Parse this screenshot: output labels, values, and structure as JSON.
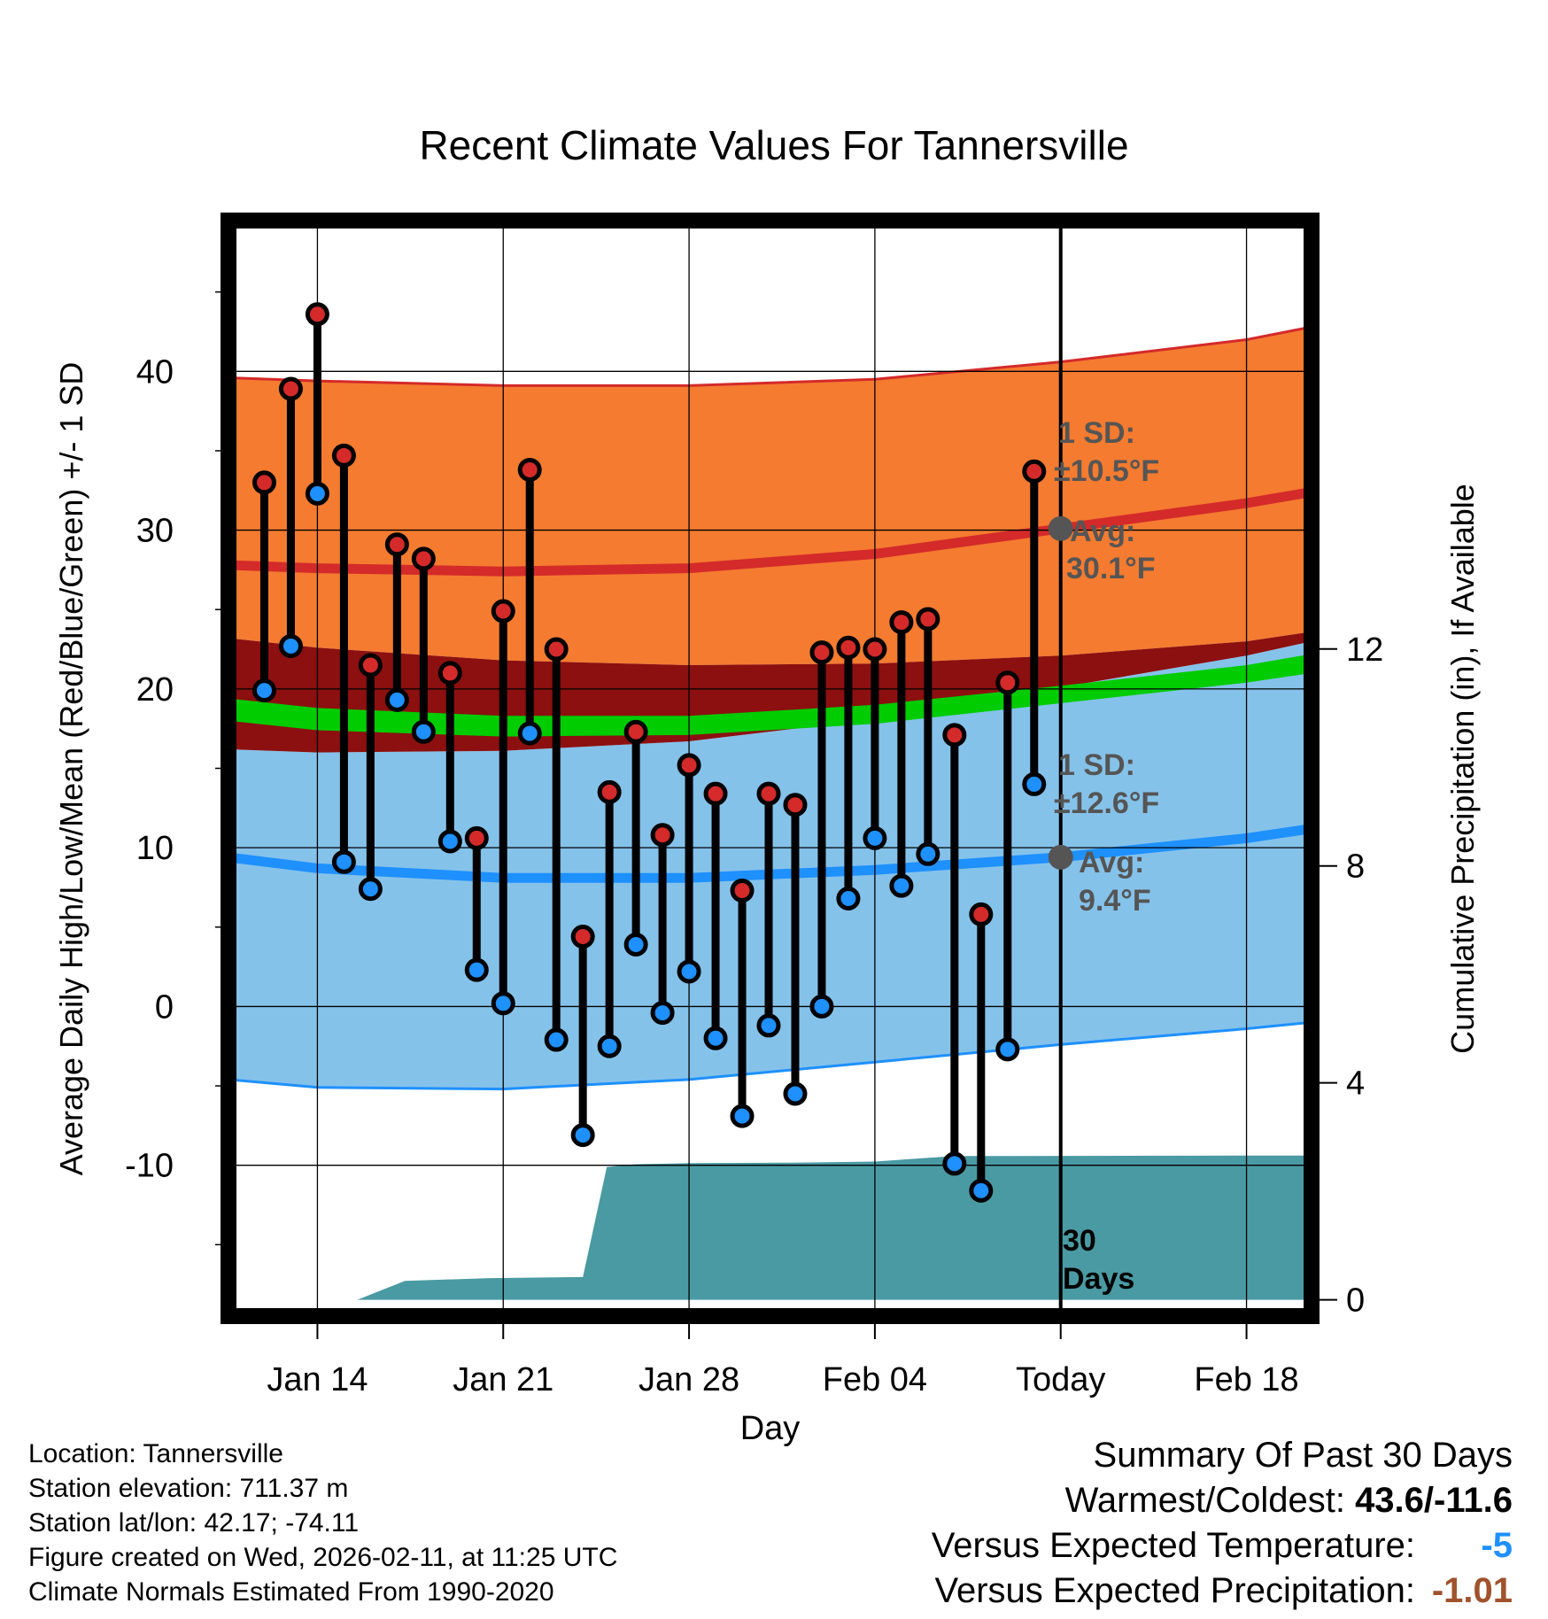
{
  "chart_data": {
    "type": "line",
    "title": "Recent Climate Values For Tannersville",
    "xlabel": "Day",
    "ylabel": "Average Daily High/Low/Mean (Red/Blue/Green) +/- 1 SD",
    "y2label": "Cumulative Precipitation (in), If Available",
    "ylim": [
      -19.5,
      49.5
    ],
    "y_ticks": [
      -10,
      0,
      10,
      20,
      30,
      40
    ],
    "y_tick_labels": [
      "-10",
      "0",
      "10",
      "20",
      "30",
      "40"
    ],
    "y2lim": [
      -0.3,
      19.9
    ],
    "y2_ticks": [
      0,
      4,
      8,
      12
    ],
    "y2_tick_labels": [
      "0",
      "4",
      "8",
      "12"
    ],
    "xlim": [
      -3.35,
      37.45
    ],
    "x_ticks": [
      0,
      7,
      14,
      21,
      28,
      35
    ],
    "x_tick_labels": [
      "Jan 14",
      "Jan 21",
      "Jan 28",
      "Feb 04",
      "Today",
      "Feb 18"
    ],
    "x_unit_note": "x values are days offset from Jan 14",
    "today_x": 28,
    "today_label_line1": "30",
    "today_label_line2": "Days",
    "normal_x": [
      -3.35,
      0,
      7,
      14,
      21,
      28,
      35,
      37.45
    ],
    "normal_high_upper": [
      39.6,
      39.4,
      39.1,
      39.1,
      39.5,
      40.6,
      42.0,
      42.8
    ],
    "normal_high_mean": [
      27.8,
      27.6,
      27.4,
      27.6,
      28.5,
      30.1,
      31.7,
      32.4
    ],
    "normal_high_lower": [
      23.2,
      22.6,
      21.8,
      21.5,
      21.6,
      22.1,
      23.0,
      23.6
    ],
    "normal_mean_upper": [
      19.4,
      18.8,
      18.3,
      18.3,
      19.0,
      20.2,
      21.5,
      22.2
    ],
    "normal_mean_lower": [
      18.0,
      17.4,
      17.0,
      17.1,
      17.8,
      19.1,
      20.4,
      21.0
    ],
    "normal_low_upper": [
      16.2,
      16.0,
      16.1,
      16.7,
      18.1,
      20.1,
      22.1,
      23.0
    ],
    "normal_low_mean": [
      9.4,
      8.7,
      8.1,
      8.1,
      8.6,
      9.4,
      10.6,
      11.2
    ],
    "normal_low_lower": [
      -4.6,
      -5.1,
      -5.2,
      -4.6,
      -3.5,
      -2.4,
      -1.4,
      -1.0
    ],
    "precip_x": [
      -3.35,
      1.5,
      3.3,
      6.5,
      10.0,
      10.9,
      12.0,
      14.0,
      18.0,
      21.0,
      24.0,
      36.0,
      37.45
    ],
    "precip_values": [
      0.0,
      0.0,
      0.35,
      0.4,
      0.42,
      2.45,
      2.5,
      2.52,
      2.53,
      2.55,
      2.65,
      2.66,
      2.66
    ],
    "series": [
      {
        "name": "Daily High",
        "x": [
          -2,
          -1,
          0,
          1,
          2,
          3,
          4,
          5,
          6,
          7,
          8,
          9,
          10,
          11,
          12,
          13,
          14,
          15,
          16,
          17,
          18,
          19,
          20,
          21,
          22,
          23,
          24,
          25,
          26,
          27
        ],
        "values": [
          33.0,
          38.9,
          43.6,
          34.7,
          21.5,
          29.1,
          28.2,
          21.0,
          10.6,
          24.9,
          33.8,
          22.5,
          4.4,
          13.5,
          17.3,
          10.8,
          15.2,
          13.4,
          7.3,
          13.4,
          12.7,
          22.3,
          22.6,
          22.5,
          24.2,
          24.4,
          17.1,
          5.8,
          20.4,
          33.7
        ]
      },
      {
        "name": "Daily Low",
        "x": [
          -2,
          -1,
          0,
          1,
          2,
          3,
          4,
          5,
          6,
          7,
          8,
          9,
          10,
          11,
          12,
          13,
          14,
          15,
          16,
          17,
          18,
          19,
          20,
          21,
          22,
          23,
          24,
          25,
          26,
          27
        ],
        "values": [
          19.9,
          22.7,
          32.3,
          9.1,
          7.4,
          19.3,
          17.3,
          10.4,
          2.3,
          0.2,
          17.2,
          -2.1,
          -8.1,
          -2.5,
          3.9,
          -0.4,
          2.2,
          -2.0,
          -6.9,
          -1.2,
          -5.5,
          0.0,
          6.8,
          10.6,
          7.6,
          9.6,
          -9.9,
          -11.6,
          -2.7,
          14.0
        ]
      }
    ],
    "annotations": {
      "high_sd_label_line1": "1 SD:",
      "high_sd_label_line2": "±10.5°F",
      "high_avg_label_line1": "Avg:",
      "high_avg_label_line2": "30.1°F",
      "high_avg_value": 30.1,
      "low_sd_label_line1": "1 SD:",
      "low_sd_label_line2": "±12.6°F",
      "low_avg_label_line1": "Avg:",
      "low_avg_label_line2": "9.4°F",
      "low_avg_value": 9.4
    },
    "colors": {
      "high_band": "#f47b30",
      "high_line": "#d42a2a",
      "mean_band_outer": "#8c1010",
      "mean_band_inner": "#00cc00",
      "low_band": "#85c2ea",
      "low_line": "#1e90ff",
      "precip_fill": "#4a9aa3",
      "high_marker": "#d42a2a",
      "low_marker": "#1e90ff",
      "annotation_text": "#555555"
    }
  },
  "footer": {
    "location": "Location: Tannersville",
    "elevation": "Station elevation: 711.37 m",
    "latlon": "Station lat/lon: 42.17; -74.11",
    "created": "Figure created on Wed, 2026-02-11, at 11:25 UTC",
    "normals": "Climate Normals Estimated From 1990-2020"
  },
  "summary": {
    "heading": "Summary Of Past 30 Days",
    "warmest_coldest_label": "Warmest/Coldest: ",
    "warmest_coldest_value": "43.6/-11.6",
    "temp_label": "Versus Expected Temperature:",
    "temp_value": "-5",
    "temp_color": "#1e90ff",
    "precip_label": "Versus Expected Precipitation:",
    "precip_value": "-1.01",
    "precip_color": "#a0522d"
  }
}
